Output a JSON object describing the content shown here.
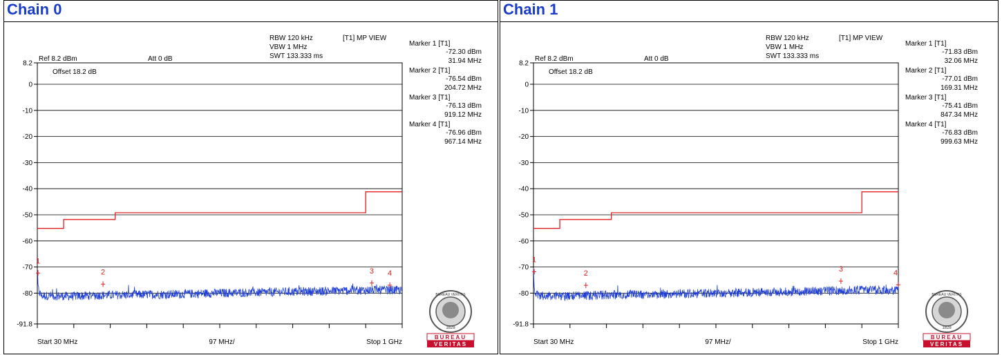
{
  "panels": [
    {
      "title": "Chain 0",
      "settings": {
        "rbw": "RBW 120 kHz",
        "vbw": "VBW 1 MHz",
        "swt": "SWT 133.333 ms",
        "mode": "[T1] MP VIEW",
        "ref": "Ref 8.2 dBm",
        "att": "Att  0 dB",
        "offset": "Offset 18.2 dB",
        "start": "Start 30 MHz",
        "span_div": "97 MHz/",
        "stop": "Stop 1 GHz"
      },
      "markers": [
        {
          "label": "Marker 1 [T1]",
          "level": "-72.30 dBm",
          "freq": "31.94 MHz"
        },
        {
          "label": "Marker 2 [T1]",
          "level": "-76.54 dBm",
          "freq": "204.72 MHz"
        },
        {
          "label": "Marker 3 [T1]",
          "level": "-76.13 dBm",
          "freq": "919.12 MHz"
        },
        {
          "label": "Marker 4 [T1]",
          "level": "-76.96 dBm",
          "freq": "967.14 MHz"
        }
      ]
    },
    {
      "title": "Chain 1",
      "settings": {
        "rbw": "RBW 120 kHz",
        "vbw": "VBW 1 MHz",
        "swt": "SWT 133.333 ms",
        "mode": "[T1] MP VIEW",
        "ref": "Ref 8.2 dBm",
        "att": "Att  0 dB",
        "offset": "Offset 18.2 dB",
        "start": "Start 30 MHz",
        "span_div": "97 MHz/",
        "stop": "Stop 1 GHz"
      },
      "markers": [
        {
          "label": "Marker 1 [T1]",
          "level": "-71.83 dBm",
          "freq": "32.06 MHz"
        },
        {
          "label": "Marker 2 [T1]",
          "level": "-77.01 dBm",
          "freq": "169.31 MHz"
        },
        {
          "label": "Marker 3 [T1]",
          "level": "-75.41 dBm",
          "freq": "847.34 MHz"
        },
        {
          "label": "Marker 4 [T1]",
          "level": "-76.83 dBm",
          "freq": "999.63 MHz"
        }
      ]
    }
  ],
  "logo": {
    "top_text": "BUREAU VERITAS",
    "year": "1828",
    "band1": "BUREAU",
    "band2": "VERITAS"
  },
  "colors": {
    "title": "#1a3ccc",
    "trace": "#1f3fd6",
    "limit": "#e02020",
    "marker": "#e02020",
    "logo_red": "#c8102e"
  },
  "chart_data": [
    {
      "type": "line",
      "title": "Chain 0",
      "xlim": [
        30,
        1000
      ],
      "ylim": [
        -91.8,
        8.2
      ],
      "y_ticks": [
        8.2,
        0,
        -10,
        -20,
        -30,
        -40,
        -50,
        -60,
        -70,
        -80,
        -91.8
      ],
      "y_tick_labels": [
        "8.2",
        "0",
        "-10",
        "-20",
        "-30",
        "-40",
        "-50",
        "-60",
        "-70",
        "-80",
        "-91.8"
      ],
      "grid": true,
      "series": [
        {
          "kind": "limit",
          "x": [
            30,
            100,
            100,
            237,
            237,
            903,
            903,
            1000
          ],
          "y": [
            -55.2,
            -55.2,
            -51.8,
            -51.8,
            -49.2,
            -49.2,
            -41.2,
            -41.2
          ]
        },
        {
          "kind": "trace",
          "x": [
            30,
            32,
            36,
            42,
            60,
            120,
            200,
            300,
            400,
            500,
            600,
            700,
            800,
            900,
            960,
            1000
          ],
          "y": [
            -72.3,
            -78.0,
            -80.0,
            -81.0,
            -81.0,
            -81.2,
            -80.8,
            -80.6,
            -80.4,
            -80.0,
            -79.8,
            -79.5,
            -79.2,
            -78.9,
            -78.8,
            -79.0
          ]
        }
      ],
      "markers": [
        {
          "n": "1",
          "x": 31.94,
          "y": -72.3
        },
        {
          "n": "2",
          "x": 204.72,
          "y": -76.54
        },
        {
          "n": "3",
          "x": 919.12,
          "y": -76.13
        },
        {
          "n": "4",
          "x": 967.14,
          "y": -76.96
        }
      ]
    },
    {
      "type": "line",
      "title": "Chain 1",
      "xlim": [
        30,
        1000
      ],
      "ylim": [
        -91.8,
        8.2
      ],
      "y_ticks": [
        8.2,
        0,
        -10,
        -20,
        -30,
        -40,
        -50,
        -60,
        -70,
        -80,
        -91.8
      ],
      "y_tick_labels": [
        "8.2",
        "0",
        "-10",
        "-20",
        "-30",
        "-40",
        "-50",
        "-60",
        "-70",
        "-80",
        "-91.8"
      ],
      "grid": true,
      "series": [
        {
          "kind": "limit",
          "x": [
            30,
            100,
            100,
            237,
            237,
            903,
            903,
            1000
          ],
          "y": [
            -55.2,
            -55.2,
            -51.8,
            -51.8,
            -49.2,
            -49.2,
            -41.2,
            -41.2
          ]
        },
        {
          "kind": "trace",
          "x": [
            30,
            32,
            36,
            42,
            60,
            120,
            200,
            300,
            400,
            500,
            600,
            700,
            800,
            900,
            960,
            1000
          ],
          "y": [
            -71.8,
            -78.0,
            -80.0,
            -81.0,
            -81.0,
            -81.2,
            -80.8,
            -80.6,
            -80.4,
            -80.0,
            -79.8,
            -79.5,
            -79.2,
            -78.9,
            -78.8,
            -79.0
          ]
        }
      ],
      "markers": [
        {
          "n": "1",
          "x": 32.06,
          "y": -71.83
        },
        {
          "n": "2",
          "x": 169.31,
          "y": -77.01
        },
        {
          "n": "3",
          "x": 847.34,
          "y": -75.41
        },
        {
          "n": "4",
          "x": 999.63,
          "y": -76.83
        }
      ]
    }
  ]
}
